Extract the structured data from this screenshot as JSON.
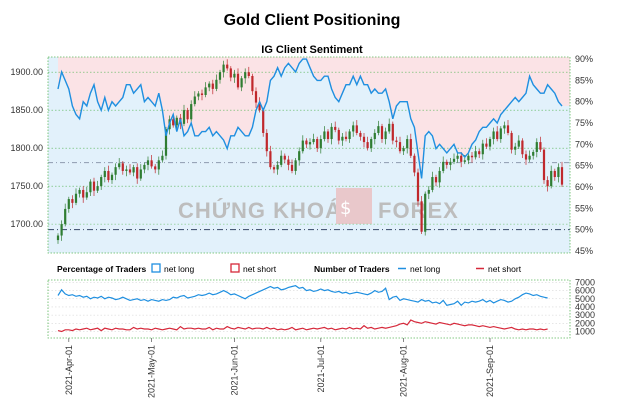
{
  "title": "Gold Client Positioning",
  "subtitle": "IG Client Sentiment",
  "watermark": {
    "left": "CHỨNG KHOÁN",
    "right": "FOREX"
  },
  "colors": {
    "long": "#1f8fe0",
    "short": "#d6283a",
    "up": "#2f7d32",
    "down": "#c0282c",
    "long_bg": "#e2f1fb",
    "short_bg": "#fbe3e6",
    "grid": "#5cb85c"
  },
  "chart_data": [
    {
      "type": "candlestick",
      "name": "price",
      "ylabel_ticks": [
        "1700.00",
        "1750.00",
        "1800.00",
        "1850.00",
        "1900.00"
      ],
      "ylim": [
        1662,
        1920
      ],
      "y2_ticks": [
        "45%",
        "50%",
        "55%",
        "60%",
        "65%",
        "70%",
        "75%",
        "80%",
        "85%",
        "90%"
      ],
      "y2lim": [
        44.5,
        90.5
      ],
      "ref_lines": {
        "price": 1781,
        "percent": 50
      },
      "closes": [
        1685,
        1700,
        1720,
        1733,
        1728,
        1740,
        1745,
        1735,
        1742,
        1756,
        1744,
        1750,
        1762,
        1770,
        1758,
        1765,
        1775,
        1780,
        1770,
        1772,
        1768,
        1775,
        1760,
        1772,
        1778,
        1784,
        1776,
        1772,
        1784,
        1790,
        1825,
        1838,
        1830,
        1840,
        1832,
        1850,
        1838,
        1858,
        1868,
        1872,
        1870,
        1880,
        1885,
        1878,
        1890,
        1900,
        1910,
        1905,
        1893,
        1898,
        1880,
        1892,
        1900,
        1895,
        1875,
        1860,
        1850,
        1820,
        1796,
        1775,
        1772,
        1778,
        1790,
        1785,
        1778,
        1770,
        1784,
        1796,
        1810,
        1805,
        1808,
        1812,
        1800,
        1812,
        1822,
        1812,
        1828,
        1824,
        1810,
        1815,
        1812,
        1822,
        1830,
        1820,
        1815,
        1808,
        1800,
        1812,
        1820,
        1829,
        1812,
        1822,
        1832,
        1810,
        1808,
        1796,
        1800,
        1812,
        1790,
        1768,
        1730,
        1690,
        1740,
        1745,
        1762,
        1755,
        1770,
        1782,
        1778,
        1782,
        1786,
        1790,
        1782,
        1784,
        1790,
        1788,
        1796,
        1792,
        1806,
        1802,
        1812,
        1822,
        1812,
        1826,
        1830,
        1820,
        1798,
        1802,
        1810,
        1792,
        1785,
        1790,
        1795,
        1808,
        1798,
        1758,
        1750,
        1770,
        1762,
        1775,
        1752
      ],
      "percent_long": [
        83,
        87,
        85,
        83,
        79,
        77,
        76,
        80,
        79,
        82,
        84,
        80,
        78,
        81,
        78,
        80,
        79,
        80,
        81,
        84,
        84,
        82,
        83,
        84,
        80,
        81,
        80,
        79,
        82,
        78,
        72,
        75,
        77,
        73,
        76,
        72,
        73,
        75,
        72,
        72,
        73,
        73,
        74,
        72,
        73,
        72,
        71,
        69,
        72,
        72,
        74,
        73,
        72,
        72,
        74,
        78,
        80,
        78,
        80,
        85,
        86,
        88,
        86,
        88,
        89,
        88,
        87,
        89,
        90,
        90,
        88,
        86,
        85,
        85,
        86,
        86,
        83,
        81,
        80,
        82,
        84,
        84,
        86,
        84,
        86,
        84,
        84,
        82,
        83,
        82,
        82,
        83,
        80,
        76,
        79,
        80,
        80,
        80,
        76,
        74,
        68,
        62,
        72,
        73,
        72,
        69,
        70,
        69,
        68,
        69,
        70,
        68,
        68,
        67,
        68,
        70,
        71,
        73,
        74,
        74,
        75,
        76,
        75,
        77,
        78,
        79,
        80,
        81,
        80,
        81,
        82,
        86,
        84,
        83,
        82,
        82,
        84,
        83,
        82,
        80,
        79
      ],
      "x_dates": [
        "2021-Apr-01",
        "2021-May-01",
        "2021-Jun-01",
        "2021-Jul-01",
        "2021-Aug-01",
        "2021-Sep-01"
      ]
    },
    {
      "type": "line",
      "name": "percentage_of_traders",
      "legend": {
        "title": "Percentage of Traders",
        "items": [
          "net long",
          "net short"
        ]
      }
    },
    {
      "type": "line",
      "name": "number_of_traders",
      "legend": {
        "title": "Number of Traders",
        "items": [
          "net long",
          "net short"
        ]
      },
      "y_ticks": [
        "1000",
        "2000",
        "3000",
        "4000",
        "5000",
        "6000",
        "7000"
      ],
      "ylim": [
        200,
        7300
      ],
      "net_long": [
        5400,
        6100,
        5600,
        5400,
        5500,
        5300,
        5400,
        5200,
        5300,
        5000,
        5200,
        5100,
        5300,
        5000,
        5200,
        5100,
        4900,
        5000,
        5200,
        5000,
        4800,
        4900,
        5000,
        4800,
        4900,
        4700,
        4900,
        4800,
        4700,
        4900,
        4800,
        4900,
        5200,
        5100,
        5300,
        5400,
        5100,
        5200,
        5300,
        5500,
        5400,
        5500,
        5700,
        5500,
        5600,
        5800,
        6000,
        5800,
        5500,
        5600,
        5400,
        5200,
        5000,
        5300,
        5500,
        5700,
        5900,
        6100,
        6300,
        6500,
        6300,
        6400,
        6100,
        6200,
        6400,
        6500,
        6600,
        6300,
        6400,
        6000,
        6100,
        5900,
        6000,
        6200,
        6000,
        6100,
        5900,
        5800,
        5900,
        5700,
        5800,
        5600,
        5700,
        5800,
        5700,
        5600,
        5500,
        5700,
        6000,
        5800,
        5900,
        6300,
        4900,
        5200,
        5300,
        4800,
        5000,
        4900,
        4800,
        4700,
        4600,
        4900,
        4700,
        4800,
        4500,
        4600,
        4400,
        4800,
        4200,
        4300,
        4400,
        4700,
        4200,
        4600,
        4500,
        4700,
        4600,
        4700,
        4900,
        4600,
        4800,
        4500,
        4700,
        4900,
        4800,
        4600,
        4700,
        5000,
        5200,
        5500,
        5700,
        5600,
        5400,
        5500,
        5300,
        5200,
        5100
      ],
      "net_short": [
        1100,
        1000,
        1200,
        1200,
        1100,
        1300,
        1200,
        1300,
        1400,
        1200,
        1300,
        1400,
        1100,
        1400,
        1300,
        1200,
        1400,
        1300,
        1300,
        1200,
        1200,
        1500,
        1300,
        1400,
        1300,
        1300,
        1200,
        1400,
        1300,
        1200,
        1300,
        1400,
        1300,
        1200,
        1600,
        1300,
        1400,
        1400,
        1300,
        1400,
        1300,
        1300,
        1500,
        1200,
        1400,
        1300,
        1300,
        1600,
        1400,
        1300,
        1500,
        1400,
        1300,
        1500,
        1300,
        1400,
        1400,
        1300,
        1500,
        1300,
        1400,
        1200,
        1300,
        1200,
        1300,
        1500,
        1200,
        1300,
        1400,
        1200,
        1300,
        1400,
        1300,
        1400,
        1500,
        1300,
        1400,
        1200,
        1300,
        1400,
        1300,
        1500,
        1300,
        1400,
        1300,
        1700,
        1400,
        1500,
        1300,
        1400,
        1500,
        1400,
        1500,
        1600,
        1700,
        1900,
        2000,
        1800,
        2400,
        2200,
        2100,
        2000,
        2200,
        2100,
        2000,
        1900,
        2100,
        2000,
        1900,
        1800,
        2000,
        1900,
        1800,
        1700,
        1800,
        1800,
        1700,
        1600,
        1700,
        1600,
        1500,
        1600,
        1500,
        1400,
        1300,
        1400,
        1500,
        1300,
        1200,
        1300,
        1200,
        1300,
        1300,
        1200,
        1300,
        1200,
        1300
      ]
    }
  ]
}
